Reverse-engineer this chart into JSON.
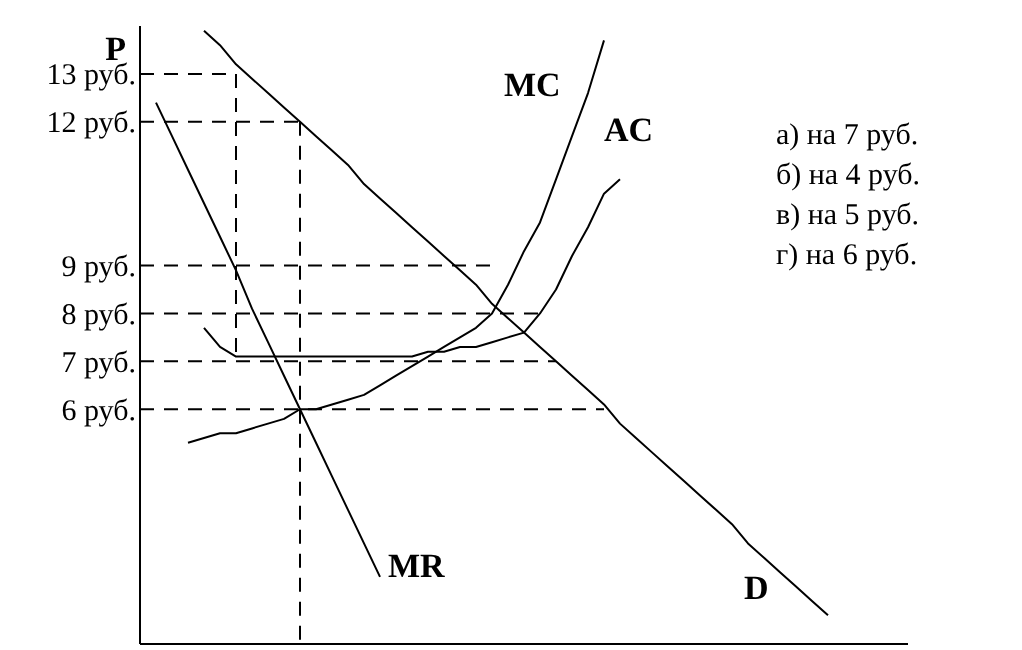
{
  "chart_data": {
    "type": "line",
    "ylabel": "P",
    "ylim": [
      1.1,
      14
    ],
    "categories": [
      null,
      null,
      null,
      null,
      null,
      null,
      null,
      null,
      null,
      null,
      null,
      null,
      null,
      null,
      null,
      null,
      null,
      null,
      null,
      null,
      null,
      null,
      null,
      null,
      null,
      null,
      null,
      null,
      null,
      null,
      null,
      null,
      null,
      null,
      null,
      null,
      null,
      null,
      null,
      null,
      null,
      null,
      null,
      null,
      null,
      null,
      null,
      null,
      null
    ],
    "yticks": [
      {
        "value": 6,
        "label": "6 руб."
      },
      {
        "value": 7,
        "label": "7 руб."
      },
      {
        "value": 8,
        "label": "8 руб."
      },
      {
        "value": 9,
        "label": "9 руб."
      },
      {
        "value": 12,
        "label": "12 руб."
      },
      {
        "value": 13,
        "label": "13 руб."
      }
    ],
    "tick_labels": "y",
    "marker": "none",
    "series": [
      {
        "name": "D",
        "color": "#000000",
        "values": [
          null,
          null,
          null,
          null,
          13.9,
          13.6,
          13.2,
          12.9,
          12.6,
          12.3,
          12.0,
          11.7,
          11.4,
          11.1,
          10.7,
          10.4,
          10.1,
          9.8,
          9.5,
          9.2,
          8.9,
          8.6,
          8.2,
          7.9,
          7.6,
          7.3,
          7.0,
          6.7,
          6.4,
          6.1,
          5.7,
          5.4,
          5.1,
          4.8,
          4.5,
          4.2,
          3.9,
          3.6,
          3.2,
          2.9,
          2.6,
          2.3,
          2.0,
          1.7,
          null,
          null,
          null,
          null,
          null
        ]
      },
      {
        "name": "MR",
        "color": "#000000",
        "values": [
          null,
          12.4,
          11.7,
          11.0,
          10.3,
          9.6,
          8.9,
          8.1,
          7.4,
          6.7,
          6.0,
          5.3,
          4.6,
          3.9,
          3.2,
          2.5,
          null,
          null,
          null,
          null,
          null,
          null,
          null,
          null,
          null,
          null,
          null,
          null,
          null,
          null,
          null,
          null,
          null,
          null,
          null,
          null,
          null,
          null,
          null,
          null,
          null,
          null,
          null,
          null,
          null,
          null,
          null,
          null,
          null
        ]
      },
      {
        "name": "MC",
        "color": "#000000",
        "values": [
          null,
          null,
          null,
          5.3,
          5.4,
          5.5,
          5.5,
          5.6,
          5.7,
          5.8,
          6.0,
          6.0,
          6.1,
          6.2,
          6.3,
          6.5,
          6.7,
          6.9,
          7.1,
          7.3,
          7.5,
          7.7,
          8.0,
          8.6,
          9.3,
          9.9,
          10.8,
          11.7,
          12.6,
          13.7,
          null,
          null,
          null,
          null,
          null,
          null,
          null,
          null,
          null,
          null,
          null,
          null,
          null,
          null,
          null,
          null,
          null,
          null,
          null
        ]
      },
      {
        "name": "AC",
        "color": "#000000",
        "values": [
          null,
          null,
          null,
          null,
          7.7,
          7.3,
          7.1,
          7.1,
          7.1,
          7.1,
          7.1,
          7.1,
          7.1,
          7.1,
          7.1,
          7.1,
          7.1,
          7.1,
          7.2,
          7.2,
          7.3,
          7.3,
          7.4,
          7.5,
          7.6,
          8.0,
          8.5,
          9.2,
          9.8,
          10.5,
          10.8,
          null,
          null,
          null,
          null,
          null,
          null,
          null,
          null,
          null,
          null,
          null,
          null,
          null,
          null,
          null,
          null,
          null,
          null
        ]
      },
      {
        "color": "#000000",
        "line_style": "dashed",
        "values": [
          13,
          13,
          13,
          13,
          13,
          13,
          13,
          null,
          null,
          null,
          null,
          null,
          null,
          null,
          null,
          null,
          null,
          null,
          null,
          null,
          null,
          null,
          null,
          null,
          null,
          null,
          null,
          null,
          null,
          null,
          null,
          null,
          null,
          null,
          null,
          null,
          null,
          null,
          null,
          null,
          null,
          null,
          null,
          null,
          null,
          null,
          null,
          null,
          null
        ]
      },
      {
        "color": "#000000",
        "line_style": "dashed",
        "values": [
          12,
          12,
          12,
          12,
          12,
          12,
          12,
          12,
          12,
          12,
          12,
          null,
          null,
          null,
          null,
          null,
          null,
          null,
          null,
          null,
          null,
          null,
          null,
          null,
          null,
          null,
          null,
          null,
          null,
          null,
          null,
          null,
          null,
          null,
          null,
          null,
          null,
          null,
          null,
          null,
          null,
          null,
          null,
          null,
          null,
          null,
          null,
          null,
          null
        ]
      },
      {
        "color": "#000000",
        "line_style": "dashed",
        "values": [
          9,
          9,
          9,
          9,
          9,
          9,
          9,
          9,
          9,
          9,
          9,
          9,
          9,
          9,
          9,
          9,
          9,
          9,
          9,
          9,
          9,
          9,
          9,
          null,
          null,
          null,
          null,
          null,
          null,
          null,
          null,
          null,
          null,
          null,
          null,
          null,
          null,
          null,
          null,
          null,
          null,
          null,
          null,
          null,
          null,
          null,
          null,
          null,
          null
        ]
      },
      {
        "color": "#000000",
        "line_style": "dashed",
        "values": [
          8,
          8,
          8,
          8,
          8,
          8,
          8,
          8,
          8,
          8,
          8,
          8,
          8,
          8,
          8,
          8,
          8,
          8,
          8,
          8,
          8,
          8,
          8,
          8,
          8,
          8,
          null,
          null,
          null,
          null,
          null,
          null,
          null,
          null,
          null,
          null,
          null,
          null,
          null,
          null,
          null,
          null,
          null,
          null,
          null,
          null,
          null,
          null,
          null
        ]
      },
      {
        "color": "#000000",
        "line_style": "dashed",
        "values": [
          7,
          7,
          7,
          7,
          7,
          7,
          7,
          7,
          7,
          7,
          7,
          7,
          7,
          7,
          7,
          7,
          7,
          7,
          7,
          7,
          7,
          7,
          7,
          7,
          7,
          7,
          7,
          null,
          null,
          null,
          null,
          null,
          null,
          null,
          null,
          null,
          null,
          null,
          null,
          null,
          null,
          null,
          null,
          null,
          null,
          null,
          null,
          null,
          null
        ]
      },
      {
        "color": "#000000",
        "line_style": "dashed",
        "values": [
          6,
          6,
          6,
          6,
          6,
          6,
          6,
          6,
          6,
          6,
          6,
          6,
          6,
          6,
          6,
          6,
          6,
          6,
          6,
          6,
          6,
          6,
          6,
          6,
          6,
          6,
          6,
          6,
          6,
          6,
          null,
          null,
          null,
          null,
          null,
          null,
          null,
          null,
          null,
          null,
          null,
          null,
          null,
          null,
          null,
          null,
          null,
          null,
          null
        ]
      }
    ],
    "annotations": [
      "а) на 7 руб.",
      "б) на 4 руб.",
      "в) на 5 руб.",
      "г) на 6 руб."
    ]
  }
}
